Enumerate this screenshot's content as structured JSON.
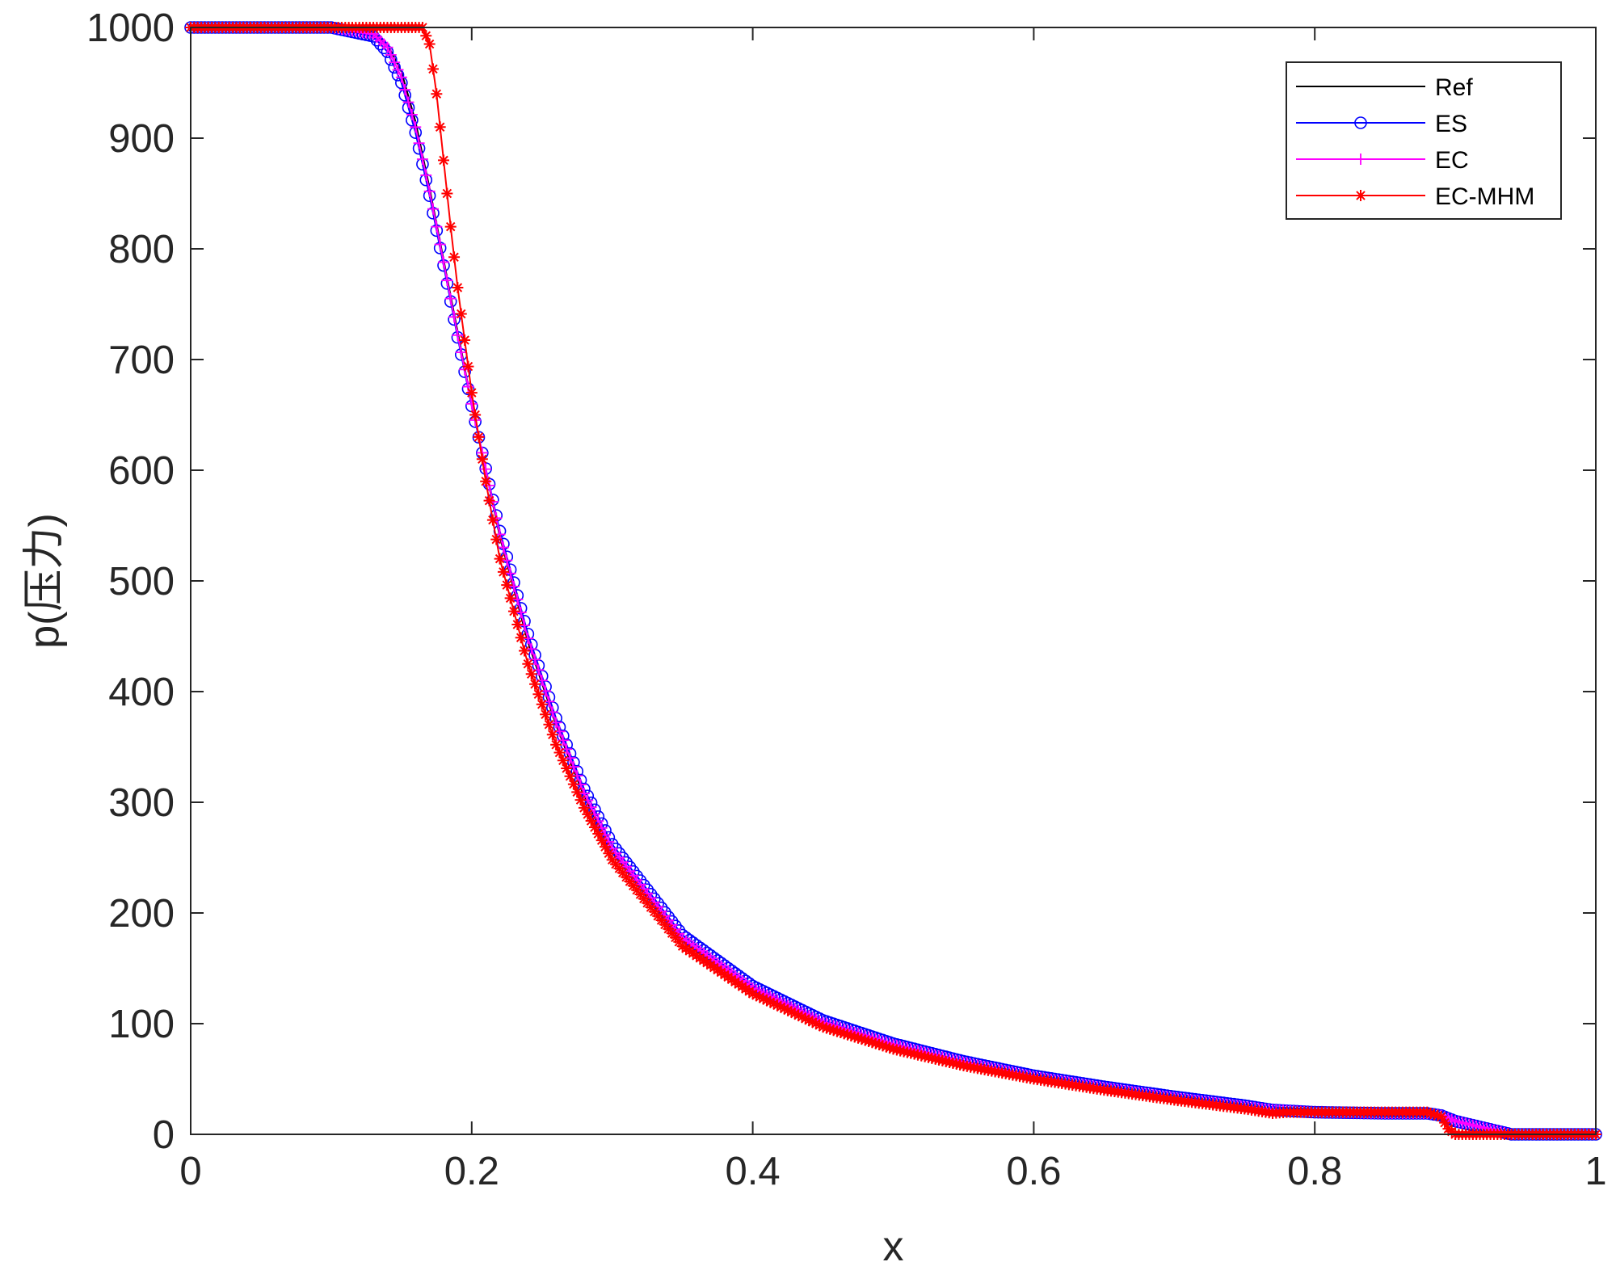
{
  "chart_data": {
    "type": "line",
    "title": "",
    "xlabel": "x",
    "ylabel": "p(压力)",
    "xlim": [
      0,
      1
    ],
    "ylim": [
      0,
      1000
    ],
    "xticks": [
      0,
      0.2,
      0.4,
      0.6,
      0.8,
      1
    ],
    "xtick_labels": [
      "0",
      "0.2",
      "0.4",
      "0.6",
      "0.8",
      "1"
    ],
    "yticks": [
      0,
      100,
      200,
      300,
      400,
      500,
      600,
      700,
      800,
      900,
      1000
    ],
    "ytick_labels": [
      "0",
      "100",
      "200",
      "300",
      "400",
      "500",
      "600",
      "700",
      "800",
      "900",
      "1000"
    ],
    "grid": false,
    "legend_position": "top-right",
    "series": [
      {
        "name": "Ref",
        "color": "#000000",
        "marker": "none",
        "x": [
          0,
          0.1,
          0.13,
          0.14,
          0.15,
          0.16,
          0.17,
          0.18,
          0.19,
          0.2,
          0.22,
          0.24,
          0.26,
          0.28,
          0.3,
          0.35,
          0.4,
          0.45,
          0.5,
          0.55,
          0.6,
          0.65,
          0.7,
          0.75,
          0.77,
          0.8,
          0.85,
          0.88,
          0.89,
          0.9,
          0.92,
          0.94,
          1.0
        ],
        "y": [
          1000,
          1000,
          995,
          985,
          960,
          915,
          855,
          790,
          725,
          660,
          540,
          445,
          370,
          305,
          255,
          175,
          130,
          100,
          80,
          65,
          52,
          42,
          33,
          25,
          22,
          20,
          19,
          19,
          17,
          12,
          6,
          0,
          0
        ]
      },
      {
        "name": "ES",
        "color": "#0000ff",
        "marker": "circle",
        "x": [
          0,
          0.1,
          0.13,
          0.14,
          0.15,
          0.16,
          0.17,
          0.18,
          0.19,
          0.2,
          0.22,
          0.24,
          0.26,
          0.28,
          0.3,
          0.35,
          0.4,
          0.45,
          0.5,
          0.55,
          0.6,
          0.65,
          0.7,
          0.75,
          0.77,
          0.8,
          0.85,
          0.88,
          0.89,
          0.9,
          0.92,
          0.94,
          1.0
        ],
        "y": [
          1000,
          1000,
          992,
          978,
          950,
          905,
          848,
          785,
          720,
          658,
          545,
          452,
          376,
          312,
          262,
          180,
          134,
          103,
          82,
          66,
          53,
          43,
          34,
          26,
          22,
          20,
          19,
          19,
          17,
          12,
          6,
          0,
          0
        ]
      },
      {
        "name": "EC",
        "color": "#ff00ff",
        "marker": "plus",
        "x": [
          0,
          0.1,
          0.13,
          0.14,
          0.15,
          0.16,
          0.17,
          0.18,
          0.19,
          0.2,
          0.22,
          0.24,
          0.26,
          0.28,
          0.3,
          0.35,
          0.4,
          0.45,
          0.5,
          0.55,
          0.6,
          0.65,
          0.7,
          0.75,
          0.77,
          0.8,
          0.85,
          0.88,
          0.89,
          0.9,
          0.92,
          0.94,
          1.0
        ],
        "y": [
          1000,
          1000,
          994,
          982,
          955,
          910,
          852,
          788,
          722,
          660,
          542,
          448,
          372,
          308,
          258,
          177,
          132,
          101,
          81,
          65,
          52,
          42,
          33,
          25,
          22,
          20,
          19,
          19,
          17,
          12,
          6,
          0,
          0
        ]
      },
      {
        "name": "EC-MHM",
        "color": "#ff0000",
        "marker": "asterisk",
        "x": [
          0,
          0.165,
          0.17,
          0.175,
          0.18,
          0.185,
          0.19,
          0.2,
          0.21,
          0.22,
          0.24,
          0.26,
          0.28,
          0.3,
          0.35,
          0.4,
          0.45,
          0.5,
          0.55,
          0.6,
          0.65,
          0.7,
          0.75,
          0.77,
          0.78,
          0.8,
          0.85,
          0.88,
          0.89,
          0.895,
          0.9,
          1.0
        ],
        "y": [
          1000,
          1000,
          985,
          940,
          880,
          820,
          765,
          670,
          590,
          520,
          425,
          352,
          295,
          248,
          170,
          127,
          97,
          77,
          62,
          50,
          40,
          31,
          23,
          19,
          20,
          20,
          20,
          20,
          16,
          5,
          0,
          0
        ]
      }
    ]
  }
}
